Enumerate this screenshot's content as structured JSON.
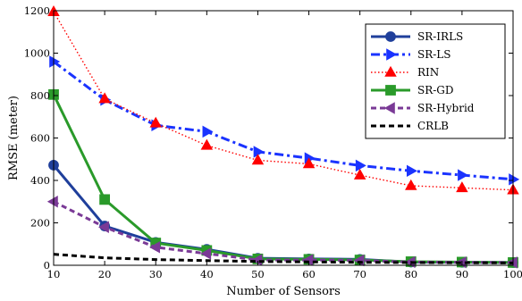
{
  "chart_data": {
    "type": "line",
    "title": "",
    "xlabel": "Number of Sensors",
    "ylabel": "RMSE (meter)",
    "xlim": [
      10,
      100
    ],
    "ylim": [
      0,
      1200
    ],
    "xticks": [
      10,
      20,
      30,
      40,
      50,
      60,
      70,
      80,
      90,
      100
    ],
    "yticks": [
      0,
      200,
      400,
      600,
      800,
      1000,
      1200
    ],
    "grid": false,
    "legend_position": "top-right",
    "x": [
      10,
      20,
      30,
      40,
      50,
      60,
      70,
      80,
      90,
      100
    ],
    "series": [
      {
        "name": "SR-IRLS",
        "color": "#1f3f9b",
        "line_style": "solid",
        "marker": "circle",
        "values": [
          472,
          185,
          108,
          75,
          33,
          30,
          28,
          15,
          14,
          13
        ]
      },
      {
        "name": "SR-LS",
        "color": "#1a33ff",
        "line_style": "dashdot",
        "marker": "triangle-right",
        "values": [
          960,
          780,
          660,
          630,
          535,
          505,
          470,
          445,
          425,
          405
        ]
      },
      {
        "name": "RIN",
        "color": "#ff0000",
        "line_style": "dotted",
        "marker": "triangle-up",
        "values": [
          1195,
          785,
          670,
          565,
          495,
          478,
          425,
          375,
          365,
          355
        ]
      },
      {
        "name": "SR-GD",
        "color": "#2a9a2a",
        "line_style": "solid",
        "marker": "square",
        "values": [
          805,
          310,
          105,
          70,
          30,
          28,
          25,
          17,
          15,
          13
        ]
      },
      {
        "name": "SR-Hybrid",
        "color": "#7a3a96",
        "line_style": "dashed",
        "marker": "triangle-left",
        "values": [
          300,
          180,
          85,
          55,
          25,
          25,
          23,
          15,
          14,
          13
        ]
      },
      {
        "name": "CRLB",
        "color": "#000000",
        "line_style": "dashed",
        "marker": "none",
        "values": [
          52,
          35,
          27,
          22,
          18,
          16,
          14,
          13,
          12,
          11
        ]
      }
    ]
  }
}
